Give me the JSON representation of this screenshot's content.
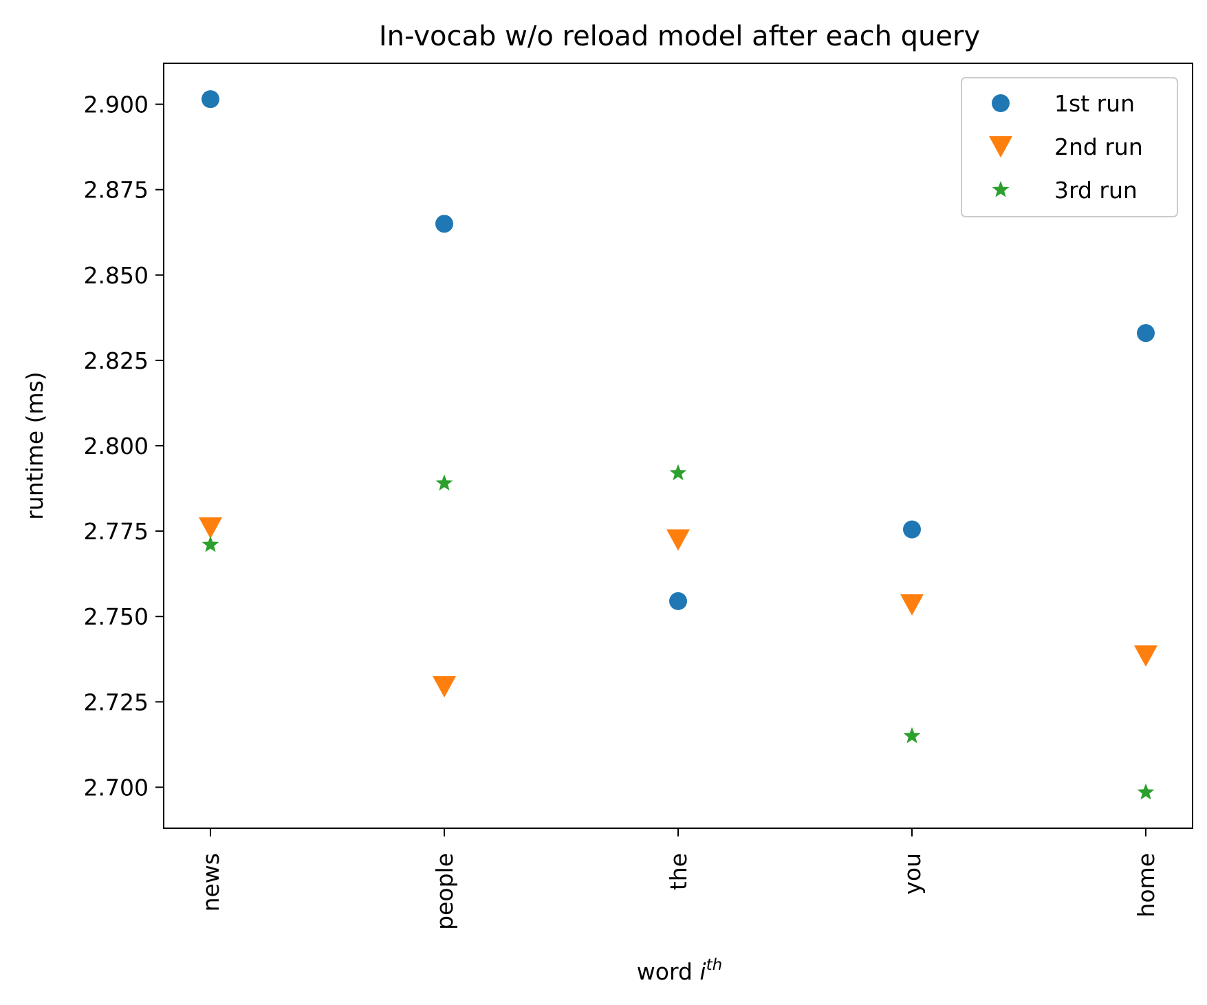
{
  "chart_data": {
    "type": "scatter",
    "title": "In-vocab w/o reload model after each query",
    "xlabel_main": "word ",
    "xlabel_italic": "i",
    "xlabel_sup": "th",
    "ylabel": "runtime (ms)",
    "categories": [
      "news",
      "people",
      "the",
      "you",
      "home"
    ],
    "ylim": [
      2.688,
      2.912
    ],
    "yticks": [
      2.7,
      2.725,
      2.75,
      2.775,
      2.8,
      2.825,
      2.85,
      2.875,
      2.9
    ],
    "ytick_labels": [
      "2.700",
      "2.725",
      "2.750",
      "2.775",
      "2.800",
      "2.825",
      "2.850",
      "2.875",
      "2.900"
    ],
    "grid": false,
    "legend_position": "top-right",
    "series": [
      {
        "name": "1st run",
        "marker": "circle",
        "color": "#1f77b4",
        "values": [
          2.9015,
          2.865,
          2.7545,
          2.7755,
          2.833
        ]
      },
      {
        "name": "2nd run",
        "marker": "triangle-down",
        "color": "#ff7f0e",
        "values": [
          2.776,
          2.7295,
          2.7725,
          2.7535,
          2.7385
        ]
      },
      {
        "name": "3rd run",
        "marker": "star",
        "color": "#2ca02c",
        "values": [
          2.771,
          2.789,
          2.792,
          2.715,
          2.6985
        ]
      }
    ]
  }
}
